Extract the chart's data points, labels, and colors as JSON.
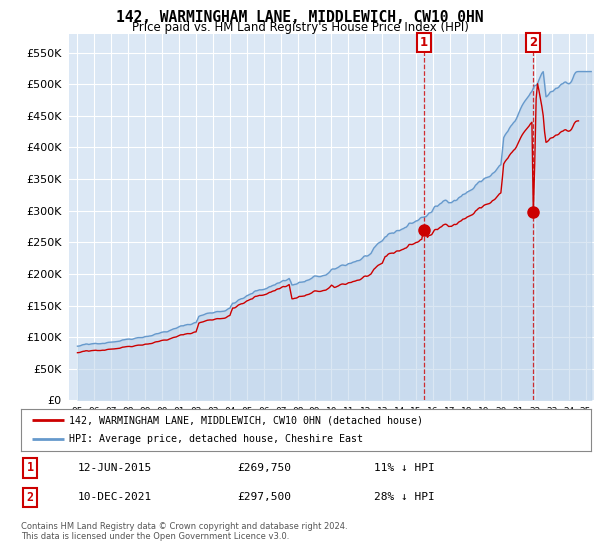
{
  "title": "142, WARMINGHAM LANE, MIDDLEWICH, CW10 0HN",
  "subtitle": "Price paid vs. HM Land Registry's House Price Index (HPI)",
  "ylim": [
    0,
    580000
  ],
  "yticks": [
    0,
    50000,
    100000,
    150000,
    200000,
    250000,
    300000,
    350000,
    400000,
    450000,
    500000,
    550000
  ],
  "background_color": "#ffffff",
  "plot_bg_color": "#dce8f5",
  "grid_color": "#ffffff",
  "legend_entry1": "142, WARMINGHAM LANE, MIDDLEWICH, CW10 0HN (detached house)",
  "legend_entry2": "HPI: Average price, detached house, Cheshire East",
  "annotation1_date": "12-JUN-2015",
  "annotation1_price": "£269,750",
  "annotation1_hpi": "11% ↓ HPI",
  "annotation2_date": "10-DEC-2021",
  "annotation2_price": "£297,500",
  "annotation2_hpi": "28% ↓ HPI",
  "footer": "Contains HM Land Registry data © Crown copyright and database right 2024.\nThis data is licensed under the Open Government Licence v3.0.",
  "red_color": "#cc0000",
  "blue_color": "#6699cc",
  "blue_fill_color": "#b8d0e8",
  "sale1_x": 2015.45,
  "sale1_y": 269750,
  "sale2_x": 2021.92,
  "sale2_y": 297500,
  "xmin": 1994.5,
  "xmax": 2025.5
}
